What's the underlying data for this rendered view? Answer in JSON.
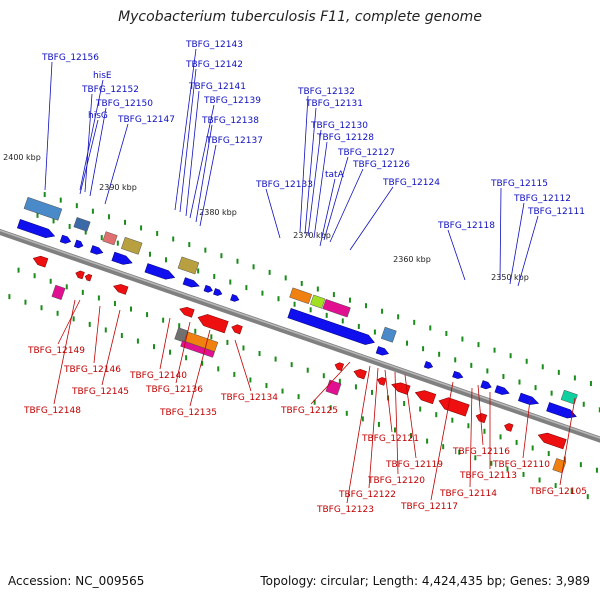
{
  "title": "Mycobacterium tuberculosis F11, complete genome",
  "footer": {
    "accession": "Accession: NC_009565",
    "summary": "Topology: circular; Length: 4,424,435 bp; Genes: 3,989"
  },
  "scale_labels": [
    "2400 kbp",
    "2390 kbp",
    "2380 kbp",
    "2370 kbp",
    "2360 kbp",
    "2350 kbp"
  ],
  "colors": {
    "forward_label": "#1010c0",
    "reverse_label": "#c00000",
    "backbone": "#808080",
    "forward_gene": "#1010ee",
    "reverse_gene": "#ee1010"
  },
  "top_labels": [
    "TBFG_12156",
    "hisE",
    "TBFG_12152",
    "TBFG_12150",
    "hisG",
    "TBFG_12147",
    "TBFG_12143",
    "TBFG_12142",
    "TBFG_12141",
    "TBFG_12139",
    "TBFG_12138",
    "TBFG_12137",
    "TBFG_12132",
    "TBFG_12131",
    "TBFG_12130",
    "TBFG_12128",
    "TBFG_12127",
    "TBFG_12126",
    "TBFG_12133",
    "tatA",
    "TBFG_12124",
    "TBFG_12115",
    "TBFG_12112",
    "TBFG_12111",
    "TBFG_12118"
  ],
  "bottom_labels": [
    "TBFG_12149",
    "TBFG_12146",
    "TBFG_12145",
    "TBFG_12148",
    "TBFG_12140",
    "TBFG_12136",
    "TBFG_12135",
    "TBFG_12134",
    "TBFG_12125",
    "TBFG_12121",
    "TBFG_12119",
    "TBFG_12120",
    "TBFG_12122",
    "TBFG_12123",
    "TBFG_12116",
    "TBFG_12113",
    "TBFG_12114",
    "TBFG_12117",
    "TBFG_12110",
    "TBFG_12105"
  ]
}
